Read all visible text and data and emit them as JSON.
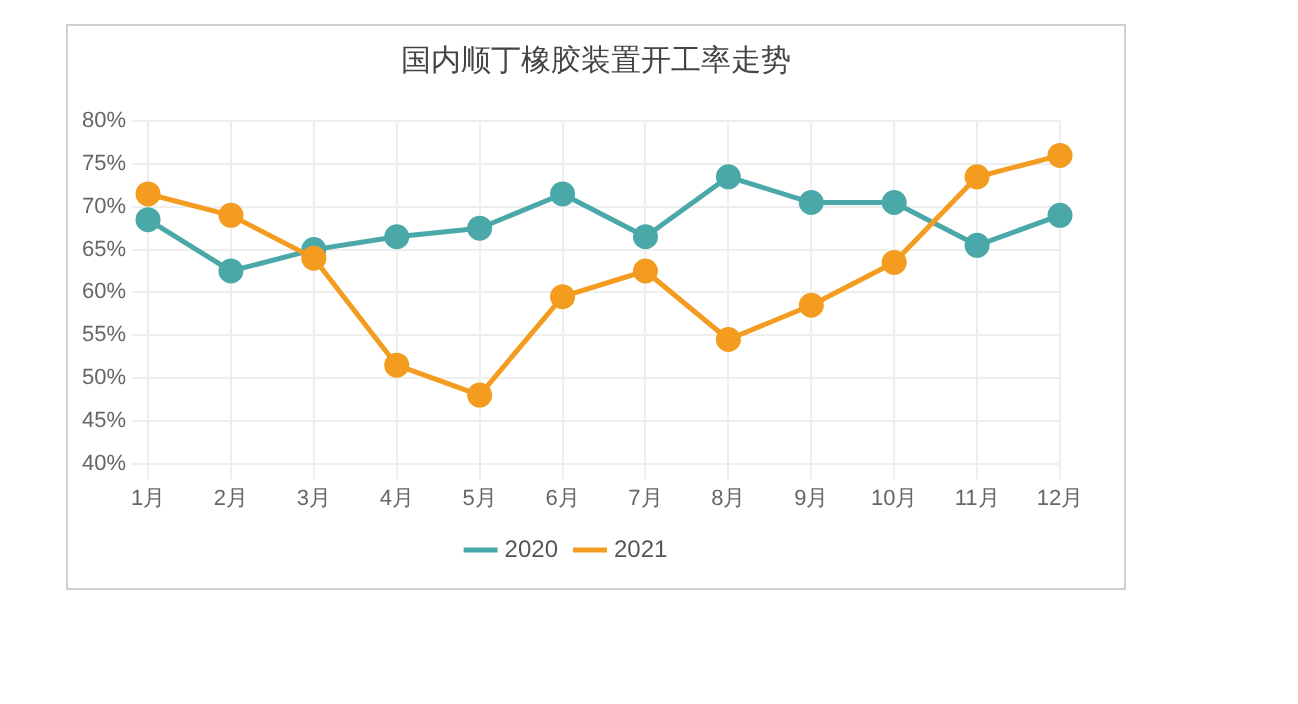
{
  "chart_data": {
    "type": "line",
    "title": "国内顺丁橡胶装置开工率走势",
    "categories": [
      "1月",
      "2月",
      "3月",
      "4月",
      "5月",
      "6月",
      "7月",
      "8月",
      "9月",
      "10月",
      "11月",
      "12月"
    ],
    "series": [
      {
        "name": "2020",
        "color": "#4aa9a8",
        "values": [
          68.5,
          62.5,
          65,
          66.5,
          67.5,
          71.5,
          66.5,
          73.5,
          70.5,
          70.5,
          65.5,
          69
        ]
      },
      {
        "name": "2021",
        "color": "#f39c1f",
        "values": [
          71.5,
          69,
          64,
          51.5,
          48,
          59.5,
          62.5,
          54.5,
          58.5,
          63.5,
          73.5,
          76
        ]
      }
    ],
    "ylim": [
      40,
      80
    ],
    "yticks": [
      {
        "value": 40,
        "label": "40%"
      },
      {
        "value": 45,
        "label": "45%"
      },
      {
        "value": 50,
        "label": "50%"
      },
      {
        "value": 55,
        "label": "55%"
      },
      {
        "value": 60,
        "label": "60%"
      },
      {
        "value": 65,
        "label": "65%"
      },
      {
        "value": 70,
        "label": "70%"
      },
      {
        "value": 75,
        "label": "75%"
      },
      {
        "value": 80,
        "label": "80%"
      }
    ],
    "grid": true,
    "legend": "bottom",
    "marker": "circle",
    "line_style": "solid"
  }
}
